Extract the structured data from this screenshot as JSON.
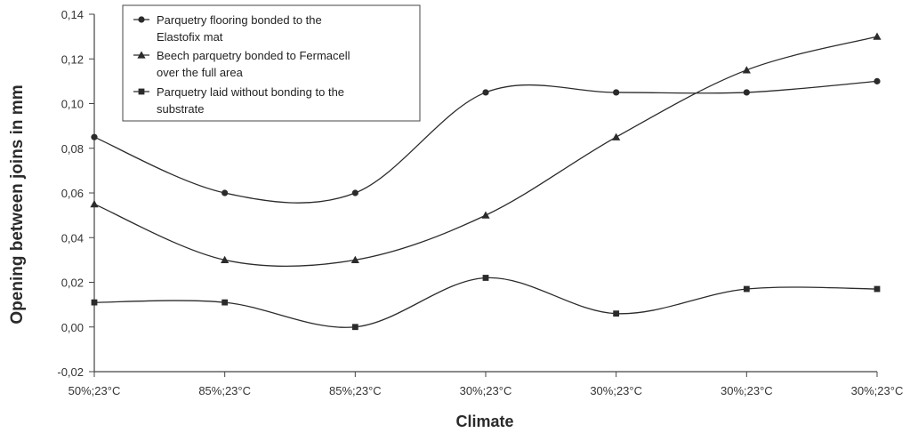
{
  "chart_data": {
    "type": "line",
    "categories": [
      "50%;23°C",
      "85%;23°C",
      "85%;23°C",
      "30%;23°C",
      "30%;23°C",
      "30%;23°C",
      "30%;23°C"
    ],
    "xlabel": "Climate",
    "ylabel": "Opening between joins in mm",
    "ylim": [
      -0.02,
      0.14
    ],
    "yticks": [
      "-0,02",
      "0,00",
      "0,02",
      "0,04",
      "0,06",
      "0,08",
      "0,10",
      "0,12",
      "0,14"
    ],
    "grid": false,
    "legend_position": "top-left",
    "series": [
      {
        "name": "Parquetry flooring bonded to the Elastofix mat",
        "legend_lines": [
          "Parquetry flooring bonded to the",
          "Elastofix mat"
        ],
        "marker": "circle",
        "values": [
          0.085,
          0.06,
          0.06,
          0.105,
          0.105,
          0.105,
          0.11
        ]
      },
      {
        "name": "Beech parquetry bonded to Fermacell over the full area",
        "legend_lines": [
          "Beech parquetry bonded to Fermacell",
          "over the full area"
        ],
        "marker": "triangle",
        "values": [
          0.055,
          0.03,
          0.03,
          0.05,
          0.085,
          0.115,
          0.13
        ]
      },
      {
        "name": "Parquetry laid without bonding to the substrate",
        "legend_lines": [
          "Parquetry laid without bonding to the",
          "substrate"
        ],
        "marker": "square",
        "values": [
          0.011,
          0.011,
          0.0,
          0.022,
          0.006,
          0.017,
          0.017
        ]
      }
    ],
    "line_color": "#2b2b2b"
  }
}
